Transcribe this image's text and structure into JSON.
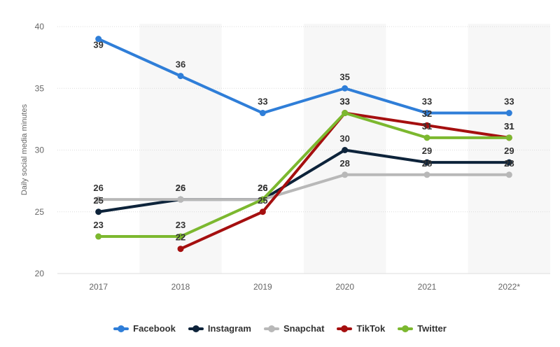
{
  "chart_data": {
    "type": "line",
    "categories": [
      "2017",
      "2018",
      "2019",
      "2020",
      "2021",
      "2022*"
    ],
    "ylabel": "Daily social media minutes",
    "ylim": [
      20,
      40
    ],
    "yticks": [
      20,
      25,
      30,
      35,
      40
    ],
    "grid": true,
    "legend_position": "bottom",
    "series": [
      {
        "name": "Facebook",
        "color": "#2f7ed8",
        "values": [
          39,
          36,
          33,
          35,
          33,
          33
        ]
      },
      {
        "name": "Instagram",
        "color": "#0d233a",
        "values": [
          25,
          26,
          26,
          30,
          29,
          29
        ]
      },
      {
        "name": "Snapchat",
        "color": "#b8b8b8",
        "values": [
          26,
          26,
          26,
          28,
          28,
          28
        ]
      },
      {
        "name": "TikTok",
        "color": "#a50f0f",
        "values": [
          null,
          22,
          25,
          33,
          32,
          31
        ]
      },
      {
        "name": "Twitter",
        "color": "#7cb82f",
        "values": [
          23,
          23,
          26,
          33,
          31,
          31
        ]
      }
    ]
  }
}
